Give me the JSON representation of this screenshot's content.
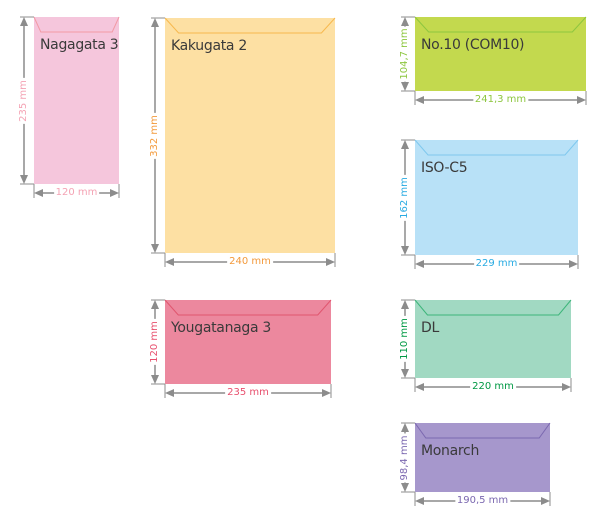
{
  "envelopes": [
    {
      "name": "Nagagata 3",
      "width_label": "120 mm",
      "height_label": "235 mm",
      "fill": "#f5c6dc",
      "flap": "#f29aa5",
      "label_color": "#f4a3b4"
    },
    {
      "name": "Kakugata 2",
      "width_label": "240 mm",
      "height_label": "332 mm",
      "fill": "#fde0a3",
      "flap": "#f7b84e",
      "label_color": "#f39a3c"
    },
    {
      "name": "Yougatanaga 3",
      "width_label": "235 mm",
      "height_label": "120 mm",
      "fill": "#ec889e",
      "flap": "#e0566f",
      "label_color": "#e8506e"
    },
    {
      "name": "No.10 (COM10)",
      "width_label": "241,3 mm",
      "height_label": "104,7 mm",
      "fill": "#c3d94e",
      "flap": "#8dc63f",
      "label_color": "#8dc63f"
    },
    {
      "name": "ISO-C5",
      "width_label": "229 mm",
      "height_label": "162 mm",
      "fill": "#b8e1f7",
      "flap": "#7fc8ee",
      "label_color": "#29abe2"
    },
    {
      "name": "DL",
      "width_label": "220 mm",
      "height_label": "110 mm",
      "fill": "#a1d9c2",
      "flap": "#3db57a",
      "label_color": "#009944"
    },
    {
      "name": "Monarch",
      "width_label": "190,5 mm",
      "height_label": "98,4 mm",
      "fill": "#a697cc",
      "flap": "#7b68b0",
      "label_color": "#7b68b0"
    }
  ],
  "guide_color": "#8c8c8c"
}
